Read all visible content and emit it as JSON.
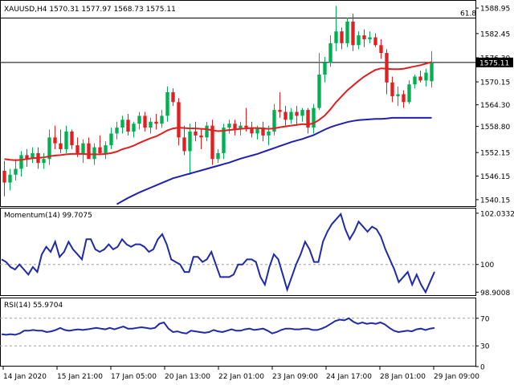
{
  "chart_data": [
    {
      "type": "candlestick",
      "title": "XAUUSD,H4  1570.31 1577.97 1568.73 1575.11",
      "symbol": "XAUUSD",
      "timeframe": "H4",
      "ohlc_header": {
        "open": 1570.31,
        "high": 1577.97,
        "low": 1568.73,
        "close": 1575.11
      },
      "ylim": [
        1538.5,
        1591.0
      ],
      "y_ticks": [
        "1588.95",
        "1582.45",
        "1576.30",
        "1570.15",
        "1564.30",
        "1558.80",
        "1552.15",
        "1546.15",
        "1540.15"
      ],
      "x_ticks": [
        "14 Jan 2020",
        "15 Jan 21:00",
        "17 Jan 05:00",
        "20 Jan 13:00",
        "22 Jan 01:00",
        "23 Jan 09:00",
        "24 Jan 17:00",
        "28 Jan 01:00",
        "29 Jan 09:00"
      ],
      "current_price_label": "1575.11",
      "fib_level_label": "61.8",
      "fib_level_value": 1586.4,
      "current_price_line": 1575.1,
      "colors": {
        "up": "#00b050",
        "down": "#e02020",
        "sma_fast": "#e02020",
        "sma_slow": "#2020b0"
      },
      "candles": [
        {
          "o": 1547.5,
          "h": 1550.0,
          "l": 1541.0,
          "c": 1544.5
        },
        {
          "o": 1544.5,
          "h": 1548.0,
          "l": 1542.5,
          "c": 1546.5
        },
        {
          "o": 1546.5,
          "h": 1550.5,
          "l": 1545.0,
          "c": 1548.0
        },
        {
          "o": 1548.0,
          "h": 1552.5,
          "l": 1546.0,
          "c": 1551.5
        },
        {
          "o": 1551.5,
          "h": 1553.0,
          "l": 1548.5,
          "c": 1550.5
        },
        {
          "o": 1550.5,
          "h": 1553.5,
          "l": 1549.5,
          "c": 1552.0
        },
        {
          "o": 1552.0,
          "h": 1553.5,
          "l": 1548.0,
          "c": 1549.5
        },
        {
          "o": 1549.5,
          "h": 1552.0,
          "l": 1548.0,
          "c": 1550.5
        },
        {
          "o": 1550.5,
          "h": 1558.0,
          "l": 1549.0,
          "c": 1556.0
        },
        {
          "o": 1556.0,
          "h": 1559.0,
          "l": 1553.0,
          "c": 1554.5
        },
        {
          "o": 1554.5,
          "h": 1558.0,
          "l": 1552.0,
          "c": 1553.0
        },
        {
          "o": 1553.0,
          "h": 1559.0,
          "l": 1552.0,
          "c": 1557.5
        },
        {
          "o": 1557.5,
          "h": 1558.0,
          "l": 1553.0,
          "c": 1554.0
        },
        {
          "o": 1554.0,
          "h": 1556.0,
          "l": 1551.0,
          "c": 1552.0
        },
        {
          "o": 1552.0,
          "h": 1555.5,
          "l": 1549.5,
          "c": 1554.5
        },
        {
          "o": 1554.5,
          "h": 1556.0,
          "l": 1551.0,
          "c": 1550.5
        },
        {
          "o": 1550.5,
          "h": 1554.5,
          "l": 1549.0,
          "c": 1553.5
        },
        {
          "o": 1553.5,
          "h": 1556.5,
          "l": 1551.5,
          "c": 1552.0
        },
        {
          "o": 1552.0,
          "h": 1555.0,
          "l": 1550.5,
          "c": 1554.0
        },
        {
          "o": 1554.0,
          "h": 1558.5,
          "l": 1553.0,
          "c": 1557.0
        },
        {
          "o": 1557.0,
          "h": 1560.0,
          "l": 1555.5,
          "c": 1558.5
        },
        {
          "o": 1558.5,
          "h": 1561.5,
          "l": 1557.0,
          "c": 1560.5
        },
        {
          "o": 1560.5,
          "h": 1562.0,
          "l": 1556.5,
          "c": 1557.5
        },
        {
          "o": 1557.5,
          "h": 1560.0,
          "l": 1556.0,
          "c": 1559.5
        },
        {
          "o": 1559.5,
          "h": 1562.5,
          "l": 1558.0,
          "c": 1561.5
        },
        {
          "o": 1561.5,
          "h": 1562.5,
          "l": 1557.5,
          "c": 1558.5
        },
        {
          "o": 1558.5,
          "h": 1561.0,
          "l": 1557.0,
          "c": 1560.0
        },
        {
          "o": 1560.0,
          "h": 1562.0,
          "l": 1558.0,
          "c": 1559.5
        },
        {
          "o": 1559.5,
          "h": 1563.0,
          "l": 1558.5,
          "c": 1561.5
        },
        {
          "o": 1561.5,
          "h": 1569.0,
          "l": 1560.0,
          "c": 1567.5
        },
        {
          "o": 1567.5,
          "h": 1568.5,
          "l": 1564.0,
          "c": 1565.0
        },
        {
          "o": 1565.0,
          "h": 1566.0,
          "l": 1554.0,
          "c": 1556.0
        },
        {
          "o": 1556.0,
          "h": 1559.0,
          "l": 1551.5,
          "c": 1552.5
        },
        {
          "o": 1552.5,
          "h": 1559.5,
          "l": 1546.5,
          "c": 1557.5
        },
        {
          "o": 1557.5,
          "h": 1560.0,
          "l": 1555.0,
          "c": 1556.5
        },
        {
          "o": 1556.5,
          "h": 1558.0,
          "l": 1553.0,
          "c": 1556.0
        },
        {
          "o": 1556.0,
          "h": 1560.0,
          "l": 1555.0,
          "c": 1559.0
        },
        {
          "o": 1559.0,
          "h": 1560.5,
          "l": 1549.0,
          "c": 1550.5
        },
        {
          "o": 1550.5,
          "h": 1553.0,
          "l": 1549.5,
          "c": 1552.0
        },
        {
          "o": 1552.0,
          "h": 1559.5,
          "l": 1550.5,
          "c": 1558.5
        },
        {
          "o": 1558.5,
          "h": 1560.5,
          "l": 1557.0,
          "c": 1559.5
        },
        {
          "o": 1559.5,
          "h": 1560.5,
          "l": 1556.5,
          "c": 1558.0
        },
        {
          "o": 1558.0,
          "h": 1560.0,
          "l": 1556.5,
          "c": 1559.0
        },
        {
          "o": 1559.0,
          "h": 1563.5,
          "l": 1557.5,
          "c": 1558.5
        },
        {
          "o": 1558.5,
          "h": 1560.0,
          "l": 1556.0,
          "c": 1557.0
        },
        {
          "o": 1557.0,
          "h": 1559.0,
          "l": 1555.5,
          "c": 1558.5
        },
        {
          "o": 1558.5,
          "h": 1560.0,
          "l": 1555.0,
          "c": 1556.5
        },
        {
          "o": 1556.5,
          "h": 1559.0,
          "l": 1554.0,
          "c": 1557.5
        },
        {
          "o": 1557.5,
          "h": 1564.5,
          "l": 1556.5,
          "c": 1563.0
        },
        {
          "o": 1563.0,
          "h": 1567.5,
          "l": 1561.0,
          "c": 1562.5
        },
        {
          "o": 1562.5,
          "h": 1564.0,
          "l": 1559.0,
          "c": 1560.5
        },
        {
          "o": 1560.5,
          "h": 1563.5,
          "l": 1559.5,
          "c": 1562.5
        },
        {
          "o": 1562.5,
          "h": 1564.0,
          "l": 1559.0,
          "c": 1561.5
        },
        {
          "o": 1561.5,
          "h": 1563.5,
          "l": 1560.0,
          "c": 1563.0
        },
        {
          "o": 1563.0,
          "h": 1563.5,
          "l": 1557.0,
          "c": 1558.5
        },
        {
          "o": 1558.5,
          "h": 1564.5,
          "l": 1557.0,
          "c": 1563.5
        },
        {
          "o": 1563.5,
          "h": 1577.5,
          "l": 1563.0,
          "c": 1572.0
        },
        {
          "o": 1572.0,
          "h": 1576.5,
          "l": 1570.0,
          "c": 1575.0
        },
        {
          "o": 1575.0,
          "h": 1582.0,
          "l": 1574.0,
          "c": 1580.0
        },
        {
          "o": 1580.0,
          "h": 1589.5,
          "l": 1578.0,
          "c": 1583.0
        },
        {
          "o": 1583.0,
          "h": 1584.0,
          "l": 1578.5,
          "c": 1580.0
        },
        {
          "o": 1580.0,
          "h": 1586.5,
          "l": 1579.0,
          "c": 1585.5
        },
        {
          "o": 1585.5,
          "h": 1587.5,
          "l": 1578.0,
          "c": 1579.5
        },
        {
          "o": 1579.5,
          "h": 1583.0,
          "l": 1578.5,
          "c": 1582.0
        },
        {
          "o": 1582.0,
          "h": 1583.5,
          "l": 1579.0,
          "c": 1581.0
        },
        {
          "o": 1581.0,
          "h": 1583.0,
          "l": 1580.0,
          "c": 1581.5
        },
        {
          "o": 1581.5,
          "h": 1582.5,
          "l": 1579.0,
          "c": 1579.5
        },
        {
          "o": 1579.5,
          "h": 1581.0,
          "l": 1576.0,
          "c": 1577.5
        },
        {
          "o": 1577.5,
          "h": 1578.5,
          "l": 1567.0,
          "c": 1570.0
        },
        {
          "o": 1570.0,
          "h": 1571.5,
          "l": 1565.0,
          "c": 1566.5
        },
        {
          "o": 1566.5,
          "h": 1569.0,
          "l": 1564.0,
          "c": 1567.0
        },
        {
          "o": 1567.0,
          "h": 1568.0,
          "l": 1563.5,
          "c": 1565.0
        },
        {
          "o": 1565.0,
          "h": 1570.5,
          "l": 1564.5,
          "c": 1569.5
        },
        {
          "o": 1569.5,
          "h": 1572.0,
          "l": 1568.5,
          "c": 1571.5
        },
        {
          "o": 1571.5,
          "h": 1573.0,
          "l": 1570.0,
          "c": 1570.5
        },
        {
          "o": 1570.5,
          "h": 1573.5,
          "l": 1569.0,
          "c": 1572.5
        },
        {
          "o": 1570.3,
          "h": 1578.0,
          "l": 1568.7,
          "c": 1575.1
        }
      ],
      "sma_fast": [
        1550.5,
        1550.3,
        1550.2,
        1550.3,
        1550.5,
        1550.7,
        1550.8,
        1550.9,
        1551.2,
        1551.4,
        1551.5,
        1551.7,
        1551.8,
        1551.8,
        1551.8,
        1551.7,
        1551.7,
        1551.7,
        1551.8,
        1552.0,
        1552.4,
        1553.0,
        1553.4,
        1553.9,
        1554.6,
        1555.2,
        1555.8,
        1556.3,
        1557.0,
        1557.8,
        1558.3,
        1558.5,
        1558.4,
        1558.3,
        1558.3,
        1558.2,
        1558.1,
        1557.8,
        1557.6,
        1557.7,
        1557.9,
        1558.0,
        1558.2,
        1558.3,
        1558.4,
        1558.4,
        1558.3,
        1558.2,
        1558.3,
        1558.6,
        1558.8,
        1559.0,
        1559.2,
        1559.4,
        1559.3,
        1559.6,
        1560.5,
        1561.6,
        1563.2,
        1565.0,
        1566.5,
        1568.0,
        1569.2,
        1570.4,
        1571.5,
        1572.4,
        1573.2,
        1573.6,
        1573.5,
        1573.4,
        1573.4,
        1573.5,
        1573.8,
        1574.1,
        1574.4,
        1574.8,
        1575.2
      ],
      "sma_slow": [
        null,
        null,
        null,
        null,
        null,
        null,
        null,
        null,
        null,
        null,
        null,
        null,
        null,
        null,
        null,
        null,
        null,
        null,
        null,
        null,
        1539.0,
        1539.8,
        1540.6,
        1541.3,
        1542.0,
        1542.6,
        1543.2,
        1543.8,
        1544.4,
        1545.0,
        1545.6,
        1546.0,
        1546.4,
        1546.8,
        1547.2,
        1547.6,
        1548.0,
        1548.4,
        1548.8,
        1549.2,
        1549.6,
        1550.1,
        1550.6,
        1551.0,
        1551.4,
        1551.8,
        1552.3,
        1552.8,
        1553.3,
        1553.8,
        1554.3,
        1554.8,
        1555.2,
        1555.6,
        1556.1,
        1556.6,
        1557.3,
        1558.0,
        1558.6,
        1559.1,
        1559.5,
        1559.9,
        1560.2,
        1560.4,
        1560.5,
        1560.6,
        1560.7,
        1560.7,
        1560.8,
        1561.0,
        1561.0,
        1561.0,
        1561.0,
        1561.0,
        1561.0,
        1561.0,
        1561.0
      ]
    },
    {
      "type": "line",
      "title": "Momentum(14) 99.7075",
      "indicator": "Momentum",
      "period": 14,
      "current_value": 99.7075,
      "ylim": [
        98.75,
        102.25
      ],
      "y_ticks": [
        "102.0332",
        "100",
        "98.9008"
      ],
      "reference_line": 100,
      "color": "#1f2aa8",
      "values": [
        100.2,
        100.1,
        99.9,
        99.8,
        100.0,
        99.8,
        99.6,
        99.9,
        99.7,
        100.4,
        100.7,
        100.5,
        100.9,
        100.3,
        100.5,
        100.9,
        100.6,
        100.4,
        100.2,
        101.0,
        101.0,
        100.6,
        100.5,
        100.6,
        100.8,
        100.6,
        100.7,
        101.0,
        100.8,
        100.7,
        100.8,
        100.8,
        100.7,
        100.5,
        100.6,
        101.0,
        101.2,
        100.8,
        100.2,
        100.1,
        100.0,
        99.7,
        99.7,
        100.3,
        100.3,
        100.1,
        100.2,
        100.5,
        100.0,
        99.5,
        99.5,
        99.5,
        99.6,
        100.0,
        100.0,
        100.2,
        100.2,
        100.1,
        99.5,
        99.2,
        99.9,
        100.4,
        100.2,
        99.6,
        99.0,
        99.5,
        100.0,
        100.4,
        100.9,
        100.6,
        100.1,
        100.1,
        100.9,
        101.3,
        101.6,
        101.8,
        102.0,
        101.4,
        101.0,
        101.3,
        101.7,
        101.5,
        101.3,
        101.5,
        101.4,
        101.1,
        100.6,
        100.2,
        99.8,
        99.3,
        99.5,
        99.7,
        99.2,
        99.6,
        99.2,
        98.9,
        99.3,
        99.7075
      ]
    },
    {
      "type": "line",
      "title": "RSI(14) 55.9704",
      "indicator": "RSI",
      "period": 14,
      "current_value": 55.9704,
      "ylim": [
        0,
        100
      ],
      "y_ticks": [
        "70",
        "30",
        "0"
      ],
      "reference_lines": [
        70,
        30
      ],
      "color": "#1f2aa8",
      "values": [
        47,
        46,
        47,
        46,
        48,
        52,
        52,
        53,
        52,
        52,
        50,
        51,
        53,
        56,
        53,
        52,
        53,
        54,
        53,
        54,
        55,
        56,
        55,
        54,
        56,
        54,
        56,
        58,
        55,
        55,
        56,
        57,
        56,
        55,
        56,
        62,
        64,
        55,
        50,
        51,
        49,
        48,
        52,
        51,
        50,
        49,
        50,
        53,
        51,
        50,
        52,
        54,
        52,
        52,
        54,
        55,
        53,
        54,
        55,
        52,
        48,
        50,
        53,
        55,
        55,
        54,
        54,
        55,
        55,
        53,
        53,
        55,
        58,
        62,
        66,
        68,
        67,
        70,
        65,
        62,
        64,
        62,
        63,
        62,
        64,
        61,
        56,
        52,
        50,
        51,
        52,
        51,
        54,
        55,
        53,
        55,
        55.9704
      ]
    }
  ]
}
